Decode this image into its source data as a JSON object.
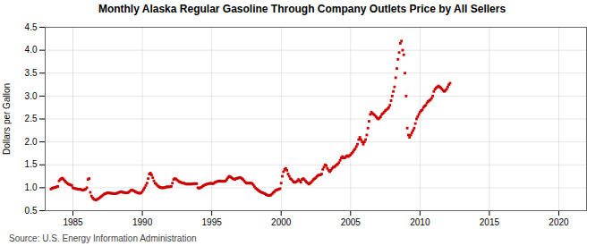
{
  "chart_data": {
    "type": "scatter",
    "title": "Monthly Alaska Regular Gasoline Through Company Outlets Price by All Sellers",
    "ylabel": "Dollars per Gallon",
    "source": "Source: U.S. Energy Information Administration",
    "color": "#cc0000",
    "marker": "square",
    "grid": true,
    "xlim": [
      1983.0,
      2022.0
    ],
    "ylim": [
      0.5,
      4.5
    ],
    "xticks": [
      1985,
      1990,
      1995,
      2000,
      2005,
      2010,
      2015,
      2020
    ],
    "yticks": [
      0.5,
      {
        "value": 1.0,
        "label": "1.0"
      },
      1.5,
      {
        "value": 2.0,
        "label": "2.0"
      },
      2.5,
      {
        "value": 3.0,
        "label": "3.0"
      },
      3.5,
      {
        "value": 4.0,
        "label": "4.0"
      },
      4.5
    ],
    "x": [
      1983.417,
      1983.5,
      1983.583,
      1983.667,
      1983.75,
      1983.833,
      1983.917,
      1984.0,
      1984.083,
      1984.167,
      1984.25,
      1984.333,
      1984.417,
      1984.5,
      1984.583,
      1984.667,
      1984.75,
      1984.833,
      1984.917,
      1985.0,
      1985.083,
      1985.167,
      1985.25,
      1985.333,
      1985.417,
      1985.5,
      1985.583,
      1985.667,
      1985.75,
      1985.833,
      1985.917,
      1986.0,
      1986.083,
      1986.167,
      1986.25,
      1986.333,
      1986.417,
      1986.5,
      1986.583,
      1986.667,
      1986.75,
      1986.833,
      1986.917,
      1987.0,
      1987.083,
      1987.167,
      1987.25,
      1987.333,
      1987.417,
      1987.5,
      1987.583,
      1987.667,
      1987.75,
      1987.833,
      1987.917,
      1988.0,
      1988.083,
      1988.167,
      1988.25,
      1988.333,
      1988.417,
      1988.5,
      1988.583,
      1988.667,
      1988.75,
      1988.833,
      1988.917,
      1989.0,
      1989.083,
      1989.167,
      1989.25,
      1989.333,
      1989.417,
      1989.5,
      1989.583,
      1989.667,
      1989.75,
      1989.833,
      1989.917,
      1990.0,
      1990.083,
      1990.167,
      1990.25,
      1990.333,
      1990.417,
      1990.5,
      1990.583,
      1990.667,
      1990.75,
      1990.833,
      1990.917,
      1991.0,
      1991.083,
      1991.167,
      1991.25,
      1991.333,
      1991.417,
      1991.5,
      1991.583,
      1991.667,
      1991.75,
      1991.833,
      1991.917,
      1992.0,
      1992.083,
      1992.167,
      1992.25,
      1992.333,
      1992.417,
      1992.5,
      1992.583,
      1992.667,
      1992.75,
      1992.833,
      1992.917,
      1993.0,
      1993.083,
      1993.167,
      1993.25,
      1993.333,
      1993.417,
      1993.5,
      1993.583,
      1993.667,
      1993.75,
      1993.833,
      1993.917,
      1994.0,
      1994.083,
      1994.167,
      1994.25,
      1994.333,
      1994.417,
      1994.5,
      1994.583,
      1994.667,
      1994.75,
      1994.833,
      1994.917,
      1995.0,
      1995.083,
      1995.167,
      1995.25,
      1995.333,
      1995.417,
      1995.5,
      1995.583,
      1995.667,
      1995.75,
      1995.833,
      1995.917,
      1996.0,
      1996.083,
      1996.167,
      1996.25,
      1996.333,
      1996.417,
      1996.5,
      1996.583,
      1996.667,
      1996.75,
      1996.833,
      1996.917,
      1997.0,
      1997.083,
      1997.167,
      1997.25,
      1997.333,
      1997.417,
      1997.5,
      1997.583,
      1997.667,
      1997.75,
      1997.833,
      1997.917,
      1998.0,
      1998.083,
      1998.167,
      1998.25,
      1998.333,
      1998.417,
      1998.5,
      1998.583,
      1998.667,
      1998.75,
      1998.833,
      1998.917,
      1999.0,
      1999.083,
      1999.167,
      1999.25,
      1999.333,
      1999.417,
      1999.5,
      1999.583,
      1999.667,
      1999.75,
      1999.833,
      1999.917,
      2000.0,
      2000.083,
      2000.167,
      2000.25,
      2000.333,
      2000.417,
      2000.5,
      2000.583,
      2000.667,
      2000.75,
      2000.833,
      2000.917,
      2001.0,
      2001.083,
      2001.167,
      2001.25,
      2001.333,
      2001.417,
      2001.5,
      2001.583,
      2001.667,
      2001.75,
      2001.833,
      2001.917,
      2002.0,
      2002.083,
      2002.167,
      2002.25,
      2002.333,
      2002.417,
      2002.5,
      2002.583,
      2002.667,
      2002.75,
      2002.833,
      2002.917,
      2003.0,
      2003.083,
      2003.167,
      2003.25,
      2003.333,
      2003.417,
      2003.5,
      2003.583,
      2003.667,
      2003.75,
      2003.833,
      2003.917,
      2004.0,
      2004.083,
      2004.167,
      2004.25,
      2004.333,
      2004.417,
      2004.5,
      2004.583,
      2004.667,
      2004.75,
      2004.833,
      2004.917,
      2005.0,
      2005.083,
      2005.167,
      2005.25,
      2005.333,
      2005.417,
      2005.5,
      2005.583,
      2005.667,
      2005.75,
      2005.833,
      2005.917,
      2006.0,
      2006.083,
      2006.167,
      2006.25,
      2006.333,
      2006.417,
      2006.5,
      2006.583,
      2006.667,
      2006.75,
      2006.833,
      2006.917,
      2007.0,
      2007.083,
      2007.167,
      2007.25,
      2007.333,
      2007.417,
      2007.5,
      2007.583,
      2007.667,
      2007.75,
      2007.833,
      2007.917,
      2008.0,
      2008.083,
      2008.167,
      2008.25,
      2008.333,
      2008.417,
      2008.5,
      2008.583,
      2008.667,
      2008.75,
      2008.833,
      2008.917,
      2009.0,
      2009.083,
      2009.167,
      2009.25,
      2009.333,
      2009.417,
      2009.5,
      2009.583,
      2009.667,
      2009.75,
      2009.833,
      2009.917,
      2010.0,
      2010.083,
      2010.167,
      2010.25,
      2010.333,
      2010.417,
      2010.5,
      2010.583,
      2010.667,
      2010.75,
      2010.833,
      2010.917,
      2011.0,
      2011.083,
      2011.167,
      2011.25,
      2011.333,
      2011.417,
      2011.5,
      2011.583,
      2011.667,
      2011.75,
      2011.833,
      2011.917,
      2012.0,
      2012.083,
      2012.167
    ],
    "values": [
      0.97,
      0.99,
      1.0,
      1.0,
      1.01,
      1.02,
      1.03,
      1.15,
      1.18,
      1.2,
      1.21,
      1.18,
      1.15,
      1.12,
      1.1,
      1.08,
      1.07,
      1.06,
      1.05,
      1.0,
      0.99,
      0.98,
      0.98,
      0.97,
      0.97,
      0.97,
      0.96,
      0.95,
      0.95,
      0.96,
      0.97,
      1.0,
      1.18,
      1.2,
      0.9,
      0.82,
      0.78,
      0.75,
      0.74,
      0.73,
      0.75,
      0.76,
      0.78,
      0.8,
      0.82,
      0.84,
      0.86,
      0.87,
      0.88,
      0.89,
      0.89,
      0.88,
      0.88,
      0.88,
      0.87,
      0.87,
      0.87,
      0.88,
      0.89,
      0.9,
      0.91,
      0.91,
      0.9,
      0.9,
      0.89,
      0.89,
      0.89,
      0.9,
      0.92,
      0.94,
      0.95,
      0.94,
      0.93,
      0.91,
      0.9,
      0.89,
      0.88,
      0.88,
      0.89,
      0.92,
      0.96,
      1.0,
      1.05,
      1.1,
      1.2,
      1.3,
      1.32,
      1.28,
      1.22,
      1.15,
      1.1,
      1.08,
      1.05,
      1.03,
      1.01,
      1.0,
      1.0,
      1.0,
      1.0,
      1.01,
      1.02,
      1.02,
      1.02,
      1.02,
      1.03,
      1.1,
      1.18,
      1.2,
      1.19,
      1.17,
      1.15,
      1.13,
      1.12,
      1.11,
      1.1,
      1.1,
      1.09,
      1.08,
      1.08,
      1.08,
      1.08,
      1.08,
      1.08,
      1.09,
      1.09,
      1.09,
      1.09,
      1.0,
      0.99,
      1.0,
      1.01,
      1.03,
      1.05,
      1.06,
      1.07,
      1.08,
      1.09,
      1.09,
      1.1,
      1.09,
      1.09,
      1.1,
      1.12,
      1.13,
      1.14,
      1.14,
      1.15,
      1.14,
      1.14,
      1.14,
      1.14,
      1.15,
      1.18,
      1.22,
      1.25,
      1.24,
      1.22,
      1.2,
      1.19,
      1.18,
      1.2,
      1.21,
      1.21,
      1.22,
      1.22,
      1.2,
      1.18,
      1.15,
      1.12,
      1.1,
      1.1,
      1.1,
      1.1,
      1.1,
      1.09,
      1.06,
      1.02,
      0.99,
      0.97,
      0.95,
      0.93,
      0.91,
      0.9,
      0.89,
      0.88,
      0.87,
      0.85,
      0.84,
      0.83,
      0.83,
      0.84,
      0.86,
      0.89,
      0.91,
      0.94,
      0.95,
      0.96,
      0.97,
      0.98,
      1.1,
      1.25,
      1.35,
      1.4,
      1.42,
      1.38,
      1.3,
      1.25,
      1.2,
      1.18,
      1.15,
      1.12,
      1.12,
      1.13,
      1.15,
      1.18,
      1.15,
      1.12,
      1.18,
      1.2,
      1.18,
      1.15,
      1.12,
      1.1,
      1.08,
      1.1,
      1.12,
      1.15,
      1.18,
      1.2,
      1.22,
      1.25,
      1.27,
      1.28,
      1.28,
      1.3,
      1.4,
      1.45,
      1.5,
      1.48,
      1.42,
      1.38,
      1.35,
      1.38,
      1.42,
      1.45,
      1.45,
      1.48,
      1.5,
      1.52,
      1.55,
      1.6,
      1.65,
      1.68,
      1.65,
      1.65,
      1.68,
      1.7,
      1.68,
      1.7,
      1.72,
      1.75,
      1.78,
      1.82,
      1.85,
      1.9,
      1.95,
      2.05,
      2.1,
      2.05,
      2.0,
      1.95,
      2.0,
      2.05,
      2.15,
      2.3,
      2.45,
      2.6,
      2.65,
      2.62,
      2.6,
      2.58,
      2.55,
      2.52,
      2.5,
      2.52,
      2.55,
      2.6,
      2.62,
      2.65,
      2.68,
      2.7,
      2.72,
      2.75,
      2.8,
      2.9,
      3.0,
      3.1,
      3.2,
      3.4,
      3.6,
      3.8,
      3.95,
      4.15,
      4.2,
      4.0,
      3.9,
      3.5,
      3.0,
      2.3,
      2.15,
      2.1,
      2.15,
      2.2,
      2.25,
      2.3,
      2.4,
      2.5,
      2.55,
      2.6,
      2.65,
      2.68,
      2.7,
      2.75,
      2.78,
      2.8,
      2.85,
      2.88,
      2.9,
      2.92,
      2.95,
      3.0,
      3.1,
      3.15,
      3.18,
      3.2,
      3.22,
      3.2,
      3.18,
      3.15,
      3.12,
      3.1,
      3.12,
      3.15,
      3.2,
      3.25,
      3.28
    ]
  }
}
